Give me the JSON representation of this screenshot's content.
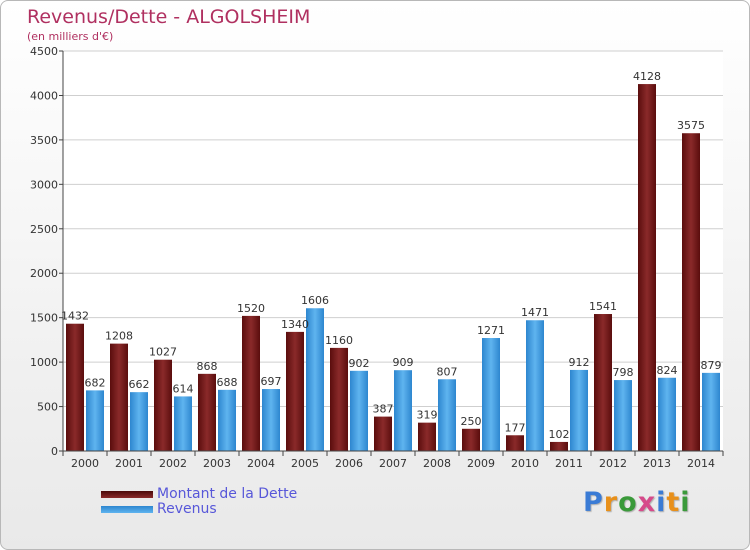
{
  "title": "Revenus/Dette - ALGOLSHEIM",
  "subtitle": "(en milliers d'€)",
  "brand": {
    "text": "Proxiti",
    "letter_colors": [
      "#3a7bd5",
      "#e8901a",
      "#3a9a3a",
      "#d64a8a",
      "#3a7bd5",
      "#e8901a",
      "#3a9a3a"
    ]
  },
  "legend": [
    {
      "label": "Montant de la Dette",
      "color": "#7a1a1a"
    },
    {
      "label": "Revenus",
      "color": "#3f9be0"
    }
  ],
  "chart_data": {
    "type": "bar",
    "categories": [
      "2000",
      "2001",
      "2002",
      "2003",
      "2004",
      "2005",
      "2006",
      "2007",
      "2008",
      "2009",
      "2010",
      "2011",
      "2012",
      "2013",
      "2014"
    ],
    "series": [
      {
        "name": "Montant de la Dette",
        "color": "#7a1a1a",
        "values": [
          1432,
          1208,
          1027,
          868,
          1520,
          1340,
          1160,
          387,
          319,
          250,
          177,
          102,
          1541,
          4128,
          3575
        ]
      },
      {
        "name": "Revenus",
        "color": "#3f9be0",
        "values": [
          682,
          662,
          614,
          688,
          697,
          1606,
          902,
          909,
          807,
          1271,
          1471,
          912,
          798,
          824,
          879
        ]
      }
    ],
    "yticks": [
      0,
      500,
      1000,
      1500,
      2000,
      2500,
      3000,
      3500,
      4000,
      4500
    ],
    "ylim": [
      0,
      4500
    ],
    "grid": true,
    "legend_position": "bottom-left"
  }
}
